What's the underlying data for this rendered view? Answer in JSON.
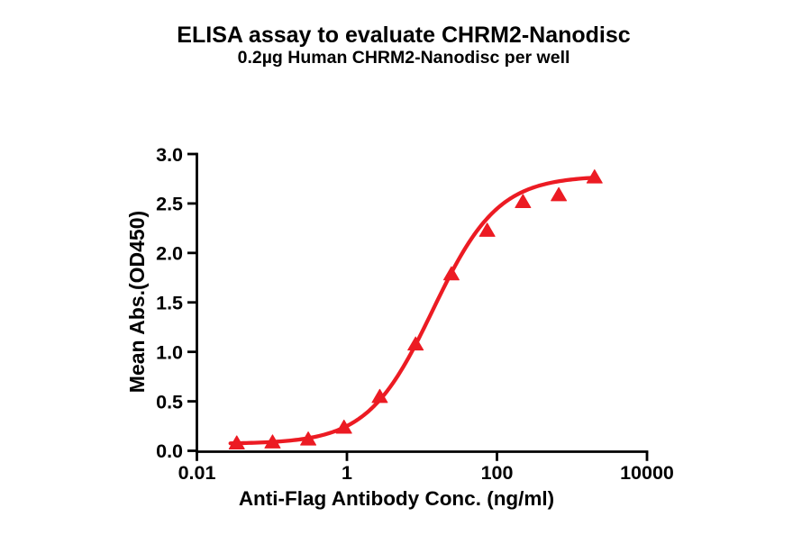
{
  "figure": {
    "background": "#ffffff"
  },
  "chart_data": {
    "type": "scatter",
    "title": "ELISA assay to evaluate CHRM2-Nanodisc",
    "subtitle": "0.2µg Human CHRM2-Nanodisc per well",
    "xlabel": "Anti-Flag Antibody Conc. (ng/ml)",
    "ylabel": "Mean Abs.(OD450)",
    "x_scale": "log10",
    "xlim": [
      0.01,
      10000
    ],
    "ylim": [
      0.0,
      3.0
    ],
    "grid": false,
    "legend": "none",
    "x_tick_values": [
      0.01,
      1,
      100,
      10000
    ],
    "x_tick_labels": [
      "0.01",
      "1",
      "100",
      "10000"
    ],
    "y_tick_values": [
      0.0,
      0.5,
      1.0,
      1.5,
      2.0,
      2.5,
      3.0
    ],
    "y_tick_labels": [
      "0.0",
      "0.5",
      "1.0",
      "1.5",
      "2.0",
      "2.5",
      "3.0"
    ],
    "axis_color": "#000000",
    "text_color": "#000000",
    "series": [
      {
        "name": "Human CHRM2-Nanodisc",
        "marker": "triangle-up",
        "color": "#ec1b23",
        "x": [
          0.034,
          0.102,
          0.305,
          0.914,
          2.74,
          8.23,
          24.69,
          74.07,
          222.2,
          666.7,
          2000
        ],
        "y": [
          0.08,
          0.09,
          0.12,
          0.24,
          0.55,
          1.08,
          1.79,
          2.23,
          2.52,
          2.59,
          2.77
        ],
        "fit_curve": {
          "model": "4PL",
          "bottom": 0.07,
          "top": 2.78,
          "ec50_ng_ml": 14.0,
          "hill": 1.0
        }
      }
    ]
  }
}
